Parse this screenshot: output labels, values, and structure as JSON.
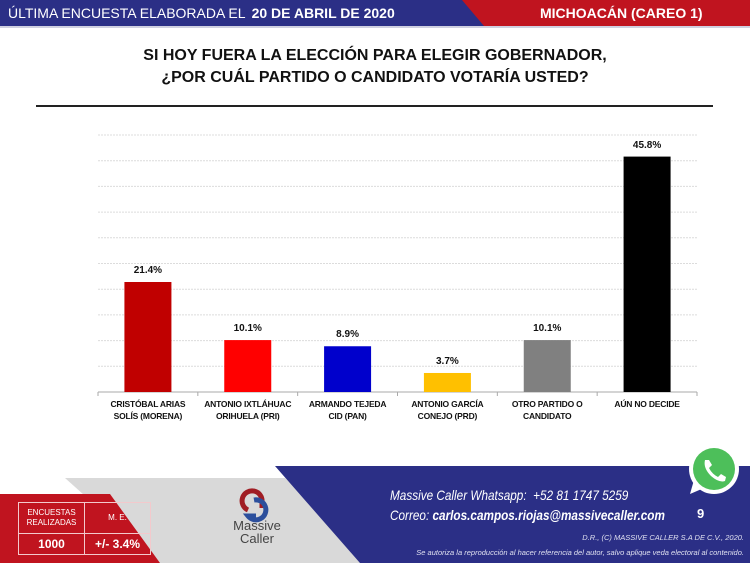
{
  "header": {
    "prefix": "ÚLTIMA ENCUESTA ELABORADA EL",
    "date": "20 DE ABRIL DE 2020",
    "region": "MICHOACÁN (CAREO 1)",
    "colors": {
      "blue": "#2b2f86",
      "red": "#c0141f"
    }
  },
  "title": {
    "line1": "SI HOY FUERA LA ELECCIÓN PARA ELEGIR GOBERNADOR,",
    "line2": "¿POR CUÁL PARTIDO O CANDIDATO VOTARÍA USTED?"
  },
  "chart_data": {
    "type": "bar",
    "categories": [
      [
        "CRISTÓBAL ARIAS",
        "SOLÍS (MORENA)"
      ],
      [
        "ANTONIO IXTLÁHUAC",
        "ORIHUELA (PRI)"
      ],
      [
        "ARMANDO TEJEDA",
        "CID (PAN)"
      ],
      [
        "ANTONIO GARCÍA",
        "CONEJO (PRD)"
      ],
      [
        "OTRO PARTIDO O",
        "CANDIDATO"
      ],
      [
        "AÚN NO DECIDE",
        ""
      ]
    ],
    "values": [
      21.4,
      10.1,
      8.9,
      3.7,
      10.1,
      45.8
    ],
    "data_labels": [
      "21.4%",
      "10.1%",
      "8.9%",
      "3.7%",
      "10.1%",
      "45.8%"
    ],
    "colors": [
      "#c00000",
      "#ff0000",
      "#0000cc",
      "#ffc000",
      "#808080",
      "#000000"
    ],
    "ylim": [
      0,
      50
    ],
    "ytick_step": 5,
    "grid": true,
    "ytick_labels_shown": false
  },
  "footer": {
    "stats": {
      "h1": [
        "ENCUESTAS",
        "REALIZADAS"
      ],
      "h2": "M. E.",
      "v1": "1000",
      "v2": "+/- 3.4%"
    },
    "logo": {
      "line1": "Massive",
      "line2": "Caller"
    },
    "whatsapp_label": "Massive Caller Whatsapp:",
    "whatsapp_number": "+52 81 1747 5259",
    "email_label": "Correo:",
    "email": "carlos.campos.riojas@massivecaller.com",
    "page": "9",
    "copyright": "D.R., (C) MASSIVE CALLER S.A DE C.V., 2020.",
    "notice": "Se autoriza la reproducción al hacer referencia del autor, salvo aplique veda electoral al contenido."
  }
}
